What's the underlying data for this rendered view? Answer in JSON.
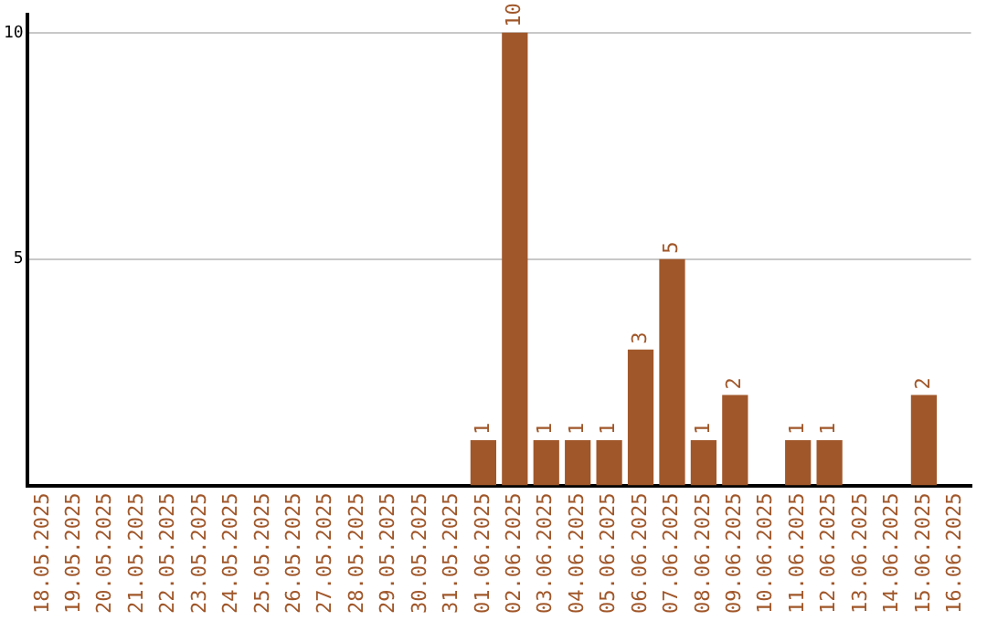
{
  "chart_data": {
    "type": "bar",
    "categories": [
      "18.05.2025",
      "19.05.2025",
      "20.05.2025",
      "21.05.2025",
      "22.05.2025",
      "23.05.2025",
      "24.05.2025",
      "25.05.2025",
      "26.05.2025",
      "27.05.2025",
      "28.05.2025",
      "29.05.2025",
      "30.05.2025",
      "31.05.2025",
      "01.06.2025",
      "02.06.2025",
      "03.06.2025",
      "04.06.2025",
      "05.06.2025",
      "06.06.2025",
      "07.06.2025",
      "08.06.2025",
      "09.06.2025",
      "10.06.2025",
      "11.06.2025",
      "12.06.2025",
      "13.06.2025",
      "14.06.2025",
      "15.06.2025",
      "16.06.2025"
    ],
    "values": [
      0,
      0,
      0,
      0,
      0,
      0,
      0,
      0,
      0,
      0,
      0,
      0,
      0,
      0,
      1,
      10,
      1,
      1,
      1,
      3,
      5,
      1,
      2,
      0,
      1,
      1,
      0,
      0,
      2,
      0
    ],
    "value_labels": [
      null,
      null,
      null,
      null,
      null,
      null,
      null,
      null,
      null,
      null,
      null,
      null,
      null,
      null,
      "1",
      "10",
      "1",
      "1",
      "1",
      "3",
      "5",
      "1",
      "2",
      null,
      "1",
      "1",
      null,
      null,
      "2",
      null
    ],
    "color": "#a0572a",
    "ylim": [
      0,
      10.4
    ],
    "yticks": [
      5,
      10
    ],
    "grid": "y",
    "legend": false
  }
}
